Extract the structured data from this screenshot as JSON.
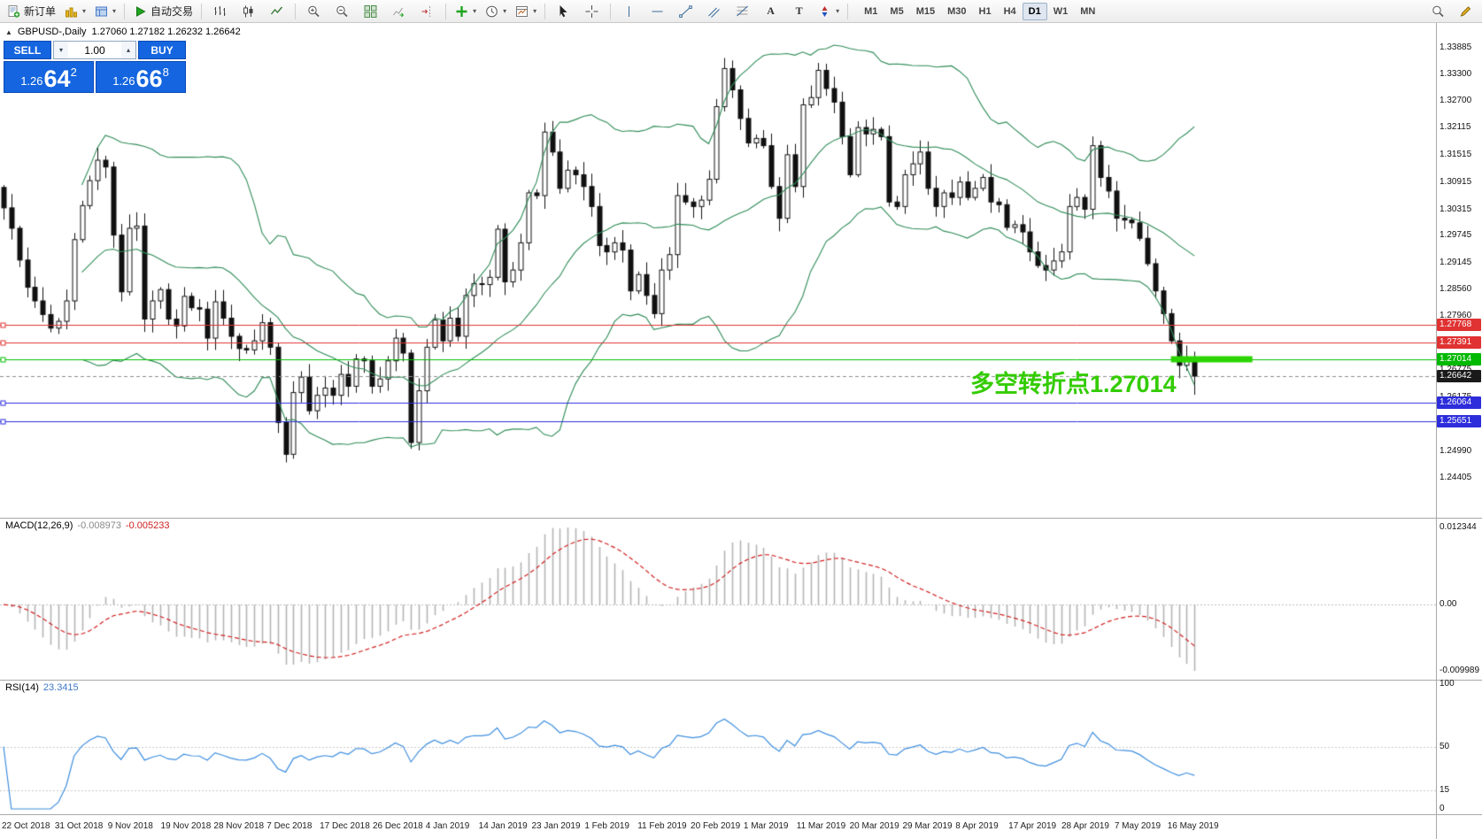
{
  "toolbar": {
    "new_order_label": "新订单",
    "autotrade_label": "自动交易",
    "timeframes": [
      "M1",
      "M5",
      "M15",
      "M30",
      "H1",
      "H4",
      "D1",
      "W1",
      "MN"
    ],
    "active_timeframe": "D1"
  },
  "chart": {
    "collapse_arrow": "▲",
    "title_symbol": "GBPUSD-,Daily",
    "title_ohlc": "1.27060 1.27182 1.26232 1.26642"
  },
  "trade_panel": {
    "sell_label": "SELL",
    "buy_label": "BUY",
    "volume": "1.00",
    "sell_price": {
      "prefix": "1.26",
      "big": "64",
      "sup": "2"
    },
    "buy_price": {
      "prefix": "1.26",
      "big": "66",
      "sup": "8"
    }
  },
  "annotation": {
    "text": "多空转折点1.27014",
    "color": "#33cc00"
  },
  "highlight_bar": {
    "price": 1.27014,
    "color": "#2bd400"
  },
  "levels": [
    {
      "price": 1.27768,
      "color": "#e03232",
      "style": "solid"
    },
    {
      "price": 1.27391,
      "color": "#e03232",
      "style": "solid"
    },
    {
      "price": 1.27014,
      "color": "#00be00",
      "style": "solid"
    },
    {
      "price": 1.26064,
      "color": "#2d2ddc",
      "style": "solid"
    },
    {
      "price": 1.25651,
      "color": "#2d2ddc",
      "style": "solid"
    },
    {
      "price": 1.26642,
      "color": "#8c8c8c",
      "style": "dash"
    }
  ],
  "price_axis": {
    "scale_labels": [
      "1.33885",
      "1.33300",
      "1.32700",
      "1.32115",
      "1.31515",
      "1.30915",
      "1.30315",
      "1.29745",
      "1.29145",
      "1.28560",
      "1.27960",
      "1.27360",
      "1.26775",
      "1.26175",
      "1.25590",
      "1.24990",
      "1.24405"
    ],
    "badges": [
      {
        "value": "1.27768",
        "color": "#e03232"
      },
      {
        "value": "1.27391",
        "color": "#e03232"
      },
      {
        "value": "1.27014",
        "color": "#02b902"
      },
      {
        "value": "1.26642",
        "color": "#1a1a1a"
      },
      {
        "value": "1.26064",
        "color": "#2d2ddc"
      },
      {
        "value": "1.25651",
        "color": "#2d2ddc"
      }
    ]
  },
  "macd_panel": {
    "label": "MACD(12,26,9)",
    "value_main": "-0.008973",
    "value_signal": "-0.005233",
    "axis_labels": [
      "0.012344",
      "0.00",
      "-0.009989"
    ]
  },
  "rsi_panel": {
    "label": "RSI(14)",
    "value": "23.3415",
    "axis_labels": [
      "100",
      "50",
      "15",
      "0"
    ],
    "levels": [
      50,
      15
    ]
  },
  "chart_data": {
    "type": "candlestick",
    "symbol": "GBPUSD",
    "period": "Daily",
    "first_open": 1.308,
    "last_candle": {
      "open": 1.2706,
      "high": 1.27182,
      "low": 1.26232,
      "close": 1.26642
    },
    "y_axis_range": [
      1.24405,
      1.33885
    ],
    "closes": [
      1.3035,
      1.299,
      1.292,
      1.286,
      1.283,
      1.28,
      1.277,
      1.2785,
      1.283,
      1.2965,
      1.304,
      1.3095,
      1.314,
      1.3125,
      1.2975,
      1.285,
      1.299,
      1.2995,
      1.279,
      1.283,
      1.2855,
      1.279,
      1.2775,
      1.284,
      1.2815,
      1.2812,
      1.2748,
      1.2828,
      1.2792,
      1.2752,
      1.2725,
      1.2722,
      1.2742,
      1.2782,
      1.2728,
      1.2562,
      1.2492,
      1.2628,
      1.2662,
      1.2588,
      1.2622,
      1.2638,
      1.2622,
      1.2668,
      1.2642,
      1.2702,
      1.2698,
      1.2642,
      1.2658,
      1.2698,
      1.2748,
      1.2715,
      1.2518,
      1.2632,
      1.2728,
      1.2788,
      1.2742,
      1.2792,
      1.2752,
      1.2842,
      1.2868,
      1.2866,
      1.2882,
      1.2988,
      1.2872,
      1.2898,
      1.2958,
      1.3068,
      1.3062,
      1.3202,
      1.3158,
      1.3078,
      1.3118,
      1.3108,
      1.3082,
      1.3038,
      1.2952,
      1.2938,
      1.2958,
      1.2942,
      1.2852,
      1.2888,
      1.2842,
      1.2802,
      1.2898,
      1.2932,
      1.3062,
      1.3048,
      1.3038,
      1.3052,
      1.3098,
      1.3258,
      1.3342,
      1.3295,
      1.3232,
      1.3178,
      1.3188,
      1.3172,
      1.3082,
      1.3012,
      1.3152,
      1.3082,
      1.3262,
      1.3278,
      1.3338,
      1.3298,
      1.3268,
      1.3192,
      1.3108,
      1.3212,
      1.3198,
      1.3208,
      1.3192,
      1.3048,
      1.3038,
      1.3108,
      1.3132,
      1.3158,
      1.3078,
      1.3038,
      1.3068,
      1.3058,
      1.3092,
      1.3058,
      1.3078,
      1.3102,
      1.3048,
      1.3042,
      1.2992,
      1.2998,
      1.2982,
      1.2938,
      1.2908,
      1.2898,
      1.2918,
      1.2938,
      1.3038,
      1.3058,
      1.3032,
      1.3172,
      1.3102,
      1.3072,
      1.3012,
      1.3008,
      1.3002,
      1.2968,
      1.2912,
      1.2852,
      1.2802,
      1.2742,
      1.2688,
      1.2706,
      1.26642
    ],
    "x_labels": [
      "22 Oct 2018",
      "31 Oct 2018",
      "9 Nov 2018",
      "19 Nov 2018",
      "28 Nov 2018",
      "7 Dec 2018",
      "17 Dec 2018",
      "26 Dec 2018",
      "4 Jan 2019",
      "14 Jan 2019",
      "23 Jan 2019",
      "1 Feb 2019",
      "11 Feb 2019",
      "20 Feb 2019",
      "1 Mar 2019",
      "11 Mar 2019",
      "20 Mar 2019",
      "29 Mar 2019",
      "8 Apr 2019",
      "17 Apr 2019",
      "28 Apr 2019",
      "7 May 2019",
      "16 May 2019"
    ],
    "overlays": {
      "bollinger_bands": {
        "period": 20,
        "deviation": 2,
        "color": "#2e8b57"
      }
    },
    "subpanels": [
      {
        "type": "macd",
        "fast": 12,
        "slow": 26,
        "signal": 9,
        "current_macd": -0.008973,
        "current_signal": -0.005233,
        "axis_max": 0.012344,
        "axis_min": -0.009989,
        "histogram_color": "#b4b4b4",
        "signal_color": "#d02020"
      },
      {
        "type": "rsi",
        "period": 14,
        "current": 23.3415,
        "range": [
          0,
          100
        ],
        "line_color": "#3e8ede"
      }
    ]
  }
}
